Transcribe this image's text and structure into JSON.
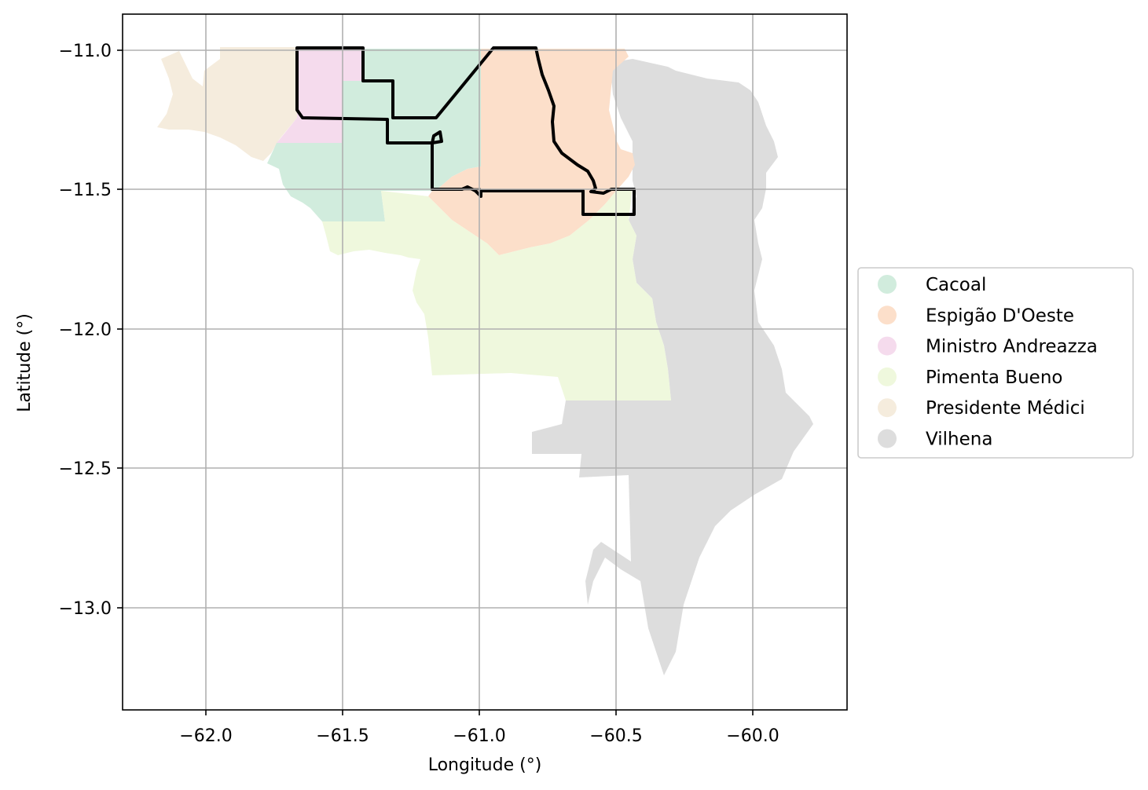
{
  "chart_data": {
    "type": "map",
    "xlabel": "Longitude (°)",
    "ylabel": "Latitude (°)",
    "xlim": [
      -62.3,
      -59.65
    ],
    "ylim": [
      -13.38,
      -10.87
    ],
    "xticks": [
      -62.0,
      -61.5,
      -61.0,
      -60.5,
      -60.0
    ],
    "xtick_labels": [
      "−62.0",
      "−61.5",
      "−61.0",
      "−60.5",
      "−60.0"
    ],
    "yticks": [
      -11.0,
      -11.5,
      -12.0,
      -12.5,
      -13.0
    ],
    "ytick_labels": [
      "−11.0",
      "−11.5",
      "−12.0",
      "−12.5",
      "−13.0"
    ],
    "grid": true,
    "legend_position": "right-outside",
    "regions": [
      {
        "name": "Cacoal",
        "color": "#d1ecdd"
      },
      {
        "name": "Espigão D'Oeste",
        "color": "#fcdfca"
      },
      {
        "name": "Ministro Andreazza",
        "color": "#f5dbed"
      },
      {
        "name": "Pimenta Bueno",
        "color": "#eff8dd"
      },
      {
        "name": "Presidente Médici",
        "color": "#f5ecdd"
      },
      {
        "name": "Vilhena",
        "color": "#dddddd"
      }
    ],
    "outline_color": "#000000"
  }
}
